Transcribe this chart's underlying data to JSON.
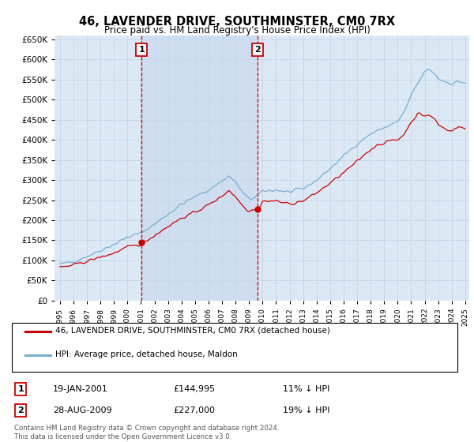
{
  "title": "46, LAVENDER DRIVE, SOUTHMINSTER, CM0 7RX",
  "subtitle": "Price paid vs. HM Land Registry's House Price Index (HPI)",
  "hpi_label": "HPI: Average price, detached house, Maldon",
  "property_label": "46, LAVENDER DRIVE, SOUTHMINSTER, CM0 7RX (detached house)",
  "footer": "Contains HM Land Registry data © Crown copyright and database right 2024.\nThis data is licensed under the Open Government Licence v3.0.",
  "transaction1": {
    "label": "1",
    "date": "19-JAN-2001",
    "price": "£144,995",
    "hpi_diff": "11% ↓ HPI"
  },
  "transaction2": {
    "label": "2",
    "date": "28-AUG-2009",
    "price": "£227,000",
    "hpi_diff": "19% ↓ HPI"
  },
  "ylim": [
    0,
    660000
  ],
  "yticks": [
    0,
    50000,
    100000,
    150000,
    200000,
    250000,
    300000,
    350000,
    400000,
    450000,
    500000,
    550000,
    600000,
    650000
  ],
  "background_color": "#ffffff",
  "plot_bg_color": "#dce9f5",
  "grid_color": "#c8d8e8",
  "shade_color": "#c5d8ed",
  "red_color": "#cc0000",
  "blue_color": "#7aadcf",
  "marker1_x": 2001.05,
  "marker1_y": 144995,
  "marker2_x": 2009.65,
  "marker2_y": 227000,
  "xlim_left": 1994.6,
  "xlim_right": 2025.3
}
